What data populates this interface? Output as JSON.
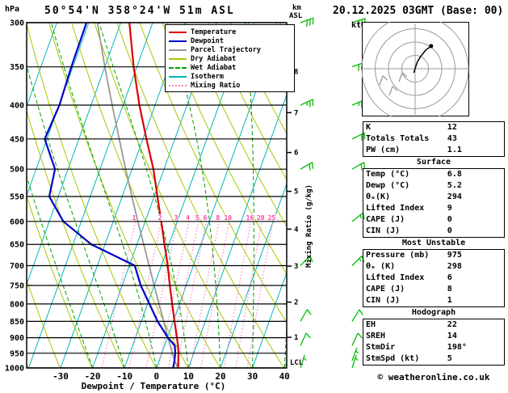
{
  "header": {
    "station": "50°54'N 358°24'W 51m ASL",
    "datetime": "20.12.2025 03GMT (Base: 00)",
    "pressure_unit": "hPa",
    "km_axis_label": "km ASL",
    "kt_label": "kt",
    "lcl_label": "LCL"
  },
  "colors": {
    "temperature": "#dd0000",
    "dewpoint": "#0000cc",
    "parcel": "#999999",
    "dry_adiabat": "#a8c800",
    "wet_adiabat": "#00a000",
    "isotherm": "#00b6b6",
    "mixing_ratio": "#ff7fbf",
    "wind_barb": "#00bb00",
    "hodograph_grid": "#999999",
    "isobar": "#000000"
  },
  "legend": [
    {
      "label": "Temperature",
      "color": "#dd0000",
      "style": "solid"
    },
    {
      "label": "Dewpoint",
      "color": "#0000cc",
      "style": "solid"
    },
    {
      "label": "Parcel Trajectory",
      "color": "#999999",
      "style": "solid"
    },
    {
      "label": "Dry Adiabat",
      "color": "#a8c800",
      "style": "solid"
    },
    {
      "label": "Wet Adiabat",
      "color": "#00a000",
      "style": "dashed"
    },
    {
      "label": "Isotherm",
      "color": "#00b6b6",
      "style": "solid"
    },
    {
      "label": "Mixing Ratio",
      "color": "#ff7fbf",
      "style": "dotted"
    }
  ],
  "axes": {
    "xlabel": "Dewpoint / Temperature (°C)",
    "right_label": "Mixing Ratio (g/kg)",
    "pressure_ticks": [
      300,
      350,
      400,
      450,
      500,
      550,
      600,
      650,
      700,
      750,
      800,
      850,
      900,
      950,
      1000
    ],
    "temp_ticks": [
      -30,
      -20,
      -10,
      0,
      10,
      20,
      30,
      40
    ],
    "km_ticks": [
      1,
      2,
      3,
      4,
      5,
      6,
      7,
      8
    ],
    "mixing_labels": [
      1,
      2,
      3,
      4,
      5,
      6,
      8,
      10,
      16,
      20,
      25
    ]
  },
  "chart_data": {
    "type": "line",
    "title": "Skew-T log-P sounding",
    "x_axis": {
      "label": "Dewpoint / Temperature (°C)",
      "unit": "°C",
      "min": -40,
      "max": 40
    },
    "y_axis": {
      "label": "Pressure",
      "unit": "hPa",
      "min": 300,
      "max": 1000,
      "scale": "log"
    },
    "secondary_y_axis": {
      "label": "km ASL",
      "ticks": [
        1,
        2,
        3,
        4,
        5,
        6,
        7,
        8
      ]
    },
    "lcl_pressure": 980,
    "series": [
      {
        "name": "Parcel Trajectory",
        "color": "#999999",
        "width": 1.8,
        "points": [
          [
            1000,
            6.8
          ],
          [
            980,
            5.2
          ],
          [
            950,
            3.3
          ],
          [
            900,
            0.2
          ],
          [
            850,
            -3.0
          ],
          [
            800,
            -6.4
          ],
          [
            750,
            -10.0
          ],
          [
            700,
            -13.8
          ],
          [
            650,
            -17.9
          ],
          [
            600,
            -22.3
          ],
          [
            550,
            -27.0
          ],
          [
            500,
            -32.0
          ],
          [
            450,
            -37.4
          ],
          [
            400,
            -43.4
          ],
          [
            350,
            -50.0
          ],
          [
            300,
            -57.3
          ]
        ]
      },
      {
        "name": "Temperature",
        "color": "#dd0000",
        "width": 2.2,
        "points": [
          [
            1000,
            6.8
          ],
          [
            975,
            6.0
          ],
          [
            950,
            5.2
          ],
          [
            925,
            4.2
          ],
          [
            900,
            3.0
          ],
          [
            850,
            0.4
          ],
          [
            800,
            -2.3
          ],
          [
            750,
            -5.1
          ],
          [
            700,
            -8.0
          ],
          [
            650,
            -11.4
          ],
          [
            600,
            -15.0
          ],
          [
            550,
            -19.0
          ],
          [
            500,
            -23.3
          ],
          [
            450,
            -28.9
          ],
          [
            400,
            -34.9
          ],
          [
            350,
            -41.0
          ],
          [
            300,
            -47.3
          ]
        ]
      },
      {
        "name": "Dewpoint",
        "color": "#0000cc",
        "width": 2.2,
        "points": [
          [
            1000,
            5.2
          ],
          [
            975,
            4.8
          ],
          [
            950,
            4.2
          ],
          [
            925,
            3.2
          ],
          [
            900,
            0.2
          ],
          [
            850,
            -4.9
          ],
          [
            800,
            -9.4
          ],
          [
            750,
            -14.2
          ],
          [
            700,
            -18.3
          ],
          [
            650,
            -34.3
          ],
          [
            600,
            -45.6
          ],
          [
            550,
            -52.8
          ],
          [
            500,
            -54.1
          ],
          [
            450,
            -60.7
          ],
          [
            400,
            -59.9
          ],
          [
            350,
            -60.5
          ],
          [
            300,
            -60.7
          ]
        ]
      }
    ],
    "wind_columns": [
      {
        "name": "sounding-barbs",
        "levels": [
          {
            "p": 300,
            "dir": 250,
            "spd": 30
          },
          {
            "p": 400,
            "dir": 245,
            "spd": 25
          },
          {
            "p": 500,
            "dir": 240,
            "spd": 20
          },
          {
            "p": 700,
            "dir": 225,
            "spd": 15
          },
          {
            "p": 850,
            "dir": 210,
            "spd": 10
          },
          {
            "p": 925,
            "dir": 205,
            "spd": 10
          },
          {
            "p": 1000,
            "dir": 198,
            "spd": 5
          }
        ]
      },
      {
        "name": "model-level-barbs",
        "levels": [
          {
            "p": 300,
            "dir": 252,
            "spd": 30
          },
          {
            "p": 350,
            "dir": 250,
            "spd": 28
          },
          {
            "p": 400,
            "dir": 247,
            "spd": 25
          },
          {
            "p": 450,
            "dir": 244,
            "spd": 22
          },
          {
            "p": 500,
            "dir": 240,
            "spd": 20
          },
          {
            "p": 600,
            "dir": 232,
            "spd": 17
          },
          {
            "p": 700,
            "dir": 225,
            "spd": 15
          },
          {
            "p": 850,
            "dir": 212,
            "spd": 10
          },
          {
            "p": 925,
            "dir": 205,
            "spd": 8
          },
          {
            "p": 975,
            "dir": 200,
            "spd": 5
          },
          {
            "p": 1000,
            "dir": 198,
            "spd": 5
          }
        ]
      }
    ],
    "hodograph": {
      "unit": "kt",
      "rings_kt": [
        10,
        20,
        30,
        40
      ],
      "trace_uv_kt": [
        [
          -1,
          -3
        ],
        [
          1.5,
          4.8
        ],
        [
          4,
          9
        ],
        [
          8,
          14
        ],
        [
          12,
          17
        ]
      ],
      "marker_uv_kt": [
        12,
        17
      ],
      "gray_barb_positions": [
        [
          22,
          78
        ],
        [
          34,
          91
        ],
        [
          46,
          74
        ]
      ]
    }
  },
  "table": {
    "groups": [
      {
        "header": null,
        "rows": [
          [
            "K",
            "12"
          ],
          [
            "Totals Totals",
            "43"
          ],
          [
            "PW (cm)",
            "1.1"
          ]
        ]
      },
      {
        "header": "Surface",
        "rows": [
          [
            "Temp (°C)",
            "6.8"
          ],
          [
            "Dewp (°C)",
            "5.2"
          ],
          [
            "θₑ(K)",
            "294"
          ],
          [
            "Lifted Index",
            "9"
          ],
          [
            "CAPE (J)",
            "0"
          ],
          [
            "CIN (J)",
            "0"
          ]
        ]
      },
      {
        "header": "Most Unstable",
        "rows": [
          [
            "Pressure (mb)",
            "975"
          ],
          [
            "θₑ (K)",
            "298"
          ],
          [
            "Lifted Index",
            "6"
          ],
          [
            "CAPE (J)",
            "8"
          ],
          [
            "CIN (J)",
            "1"
          ]
        ]
      },
      {
        "header": "Hodograph",
        "rows": [
          [
            "EH",
            "22"
          ],
          [
            "SREH",
            "14"
          ],
          [
            "StmDir",
            "198°"
          ],
          [
            "StmSpd (kt)",
            "5"
          ]
        ]
      }
    ]
  },
  "footer": "© weatheronline.co.uk"
}
